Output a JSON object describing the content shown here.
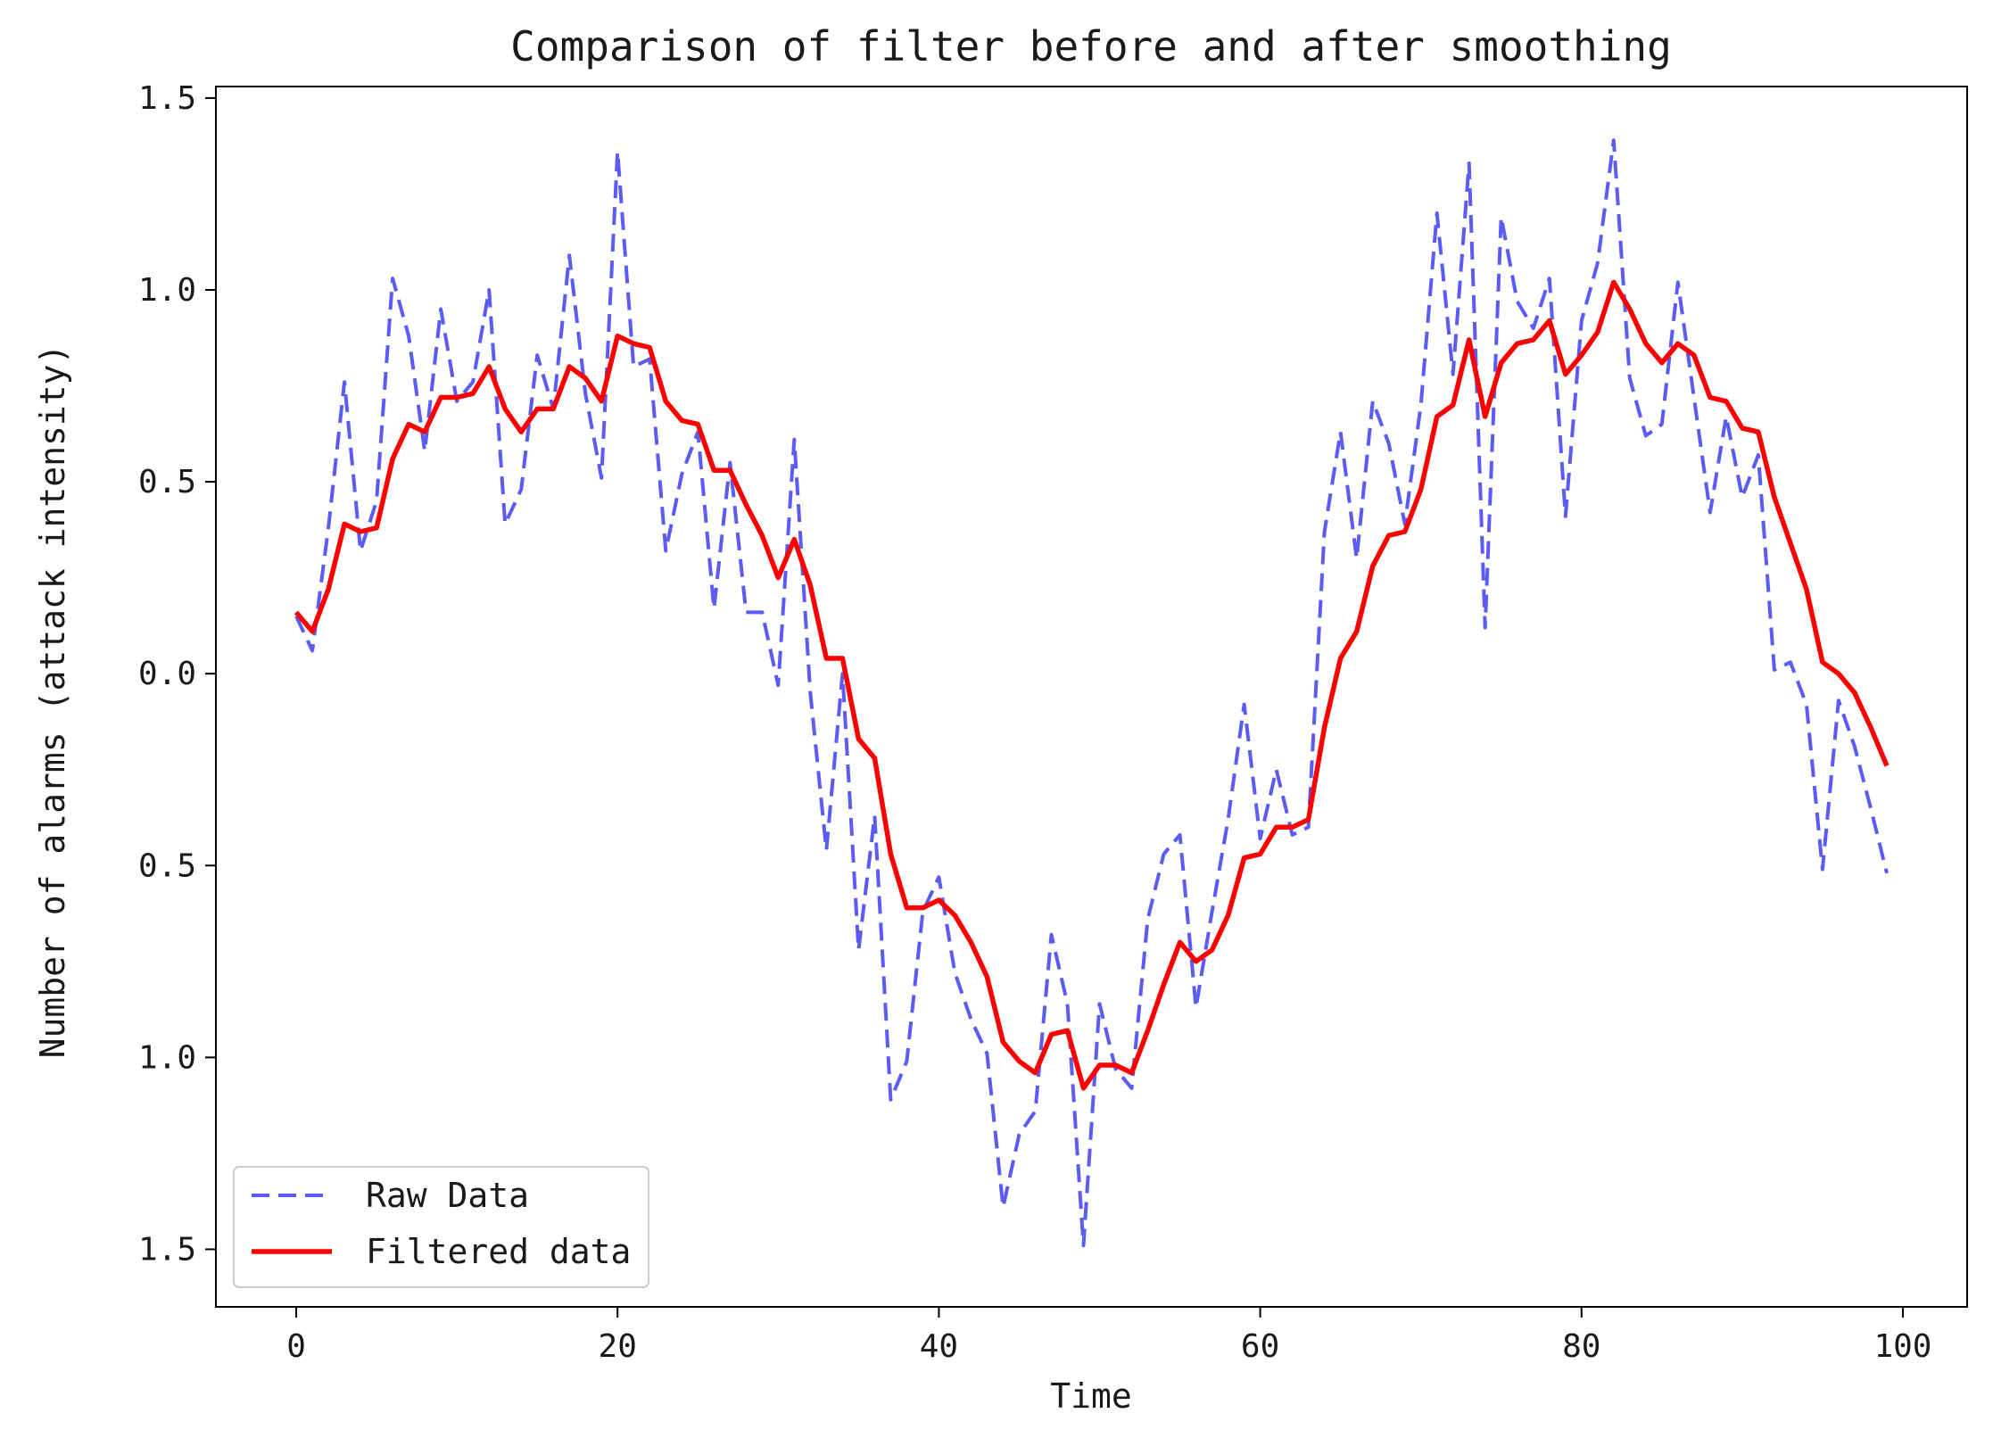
{
  "chart_data": {
    "type": "line",
    "title": "Comparison of filter before and after smoothing",
    "xlabel": "Time",
    "ylabel": "Number of alarms (attack intensity)",
    "xlim": [
      -5,
      104
    ],
    "ylim": [
      -1.65,
      1.53
    ],
    "x_ticks": [
      0,
      20,
      40,
      60,
      80,
      100
    ],
    "y_ticks": [
      1.5,
      1.0,
      0.5,
      0.0,
      -0.5,
      -1.0,
      -1.5
    ],
    "y_tick_labels": [
      "1.5",
      "1.0",
      "0.5",
      "0.0",
      "0.5",
      "1.0",
      "1.5"
    ],
    "grid": false,
    "legend_position": "lower-left",
    "x": [
      0,
      1,
      2,
      3,
      4,
      5,
      6,
      7,
      8,
      9,
      10,
      11,
      12,
      13,
      14,
      15,
      16,
      17,
      18,
      19,
      20,
      21,
      22,
      23,
      24,
      25,
      26,
      27,
      28,
      29,
      30,
      31,
      32,
      33,
      34,
      35,
      36,
      37,
      38,
      39,
      40,
      41,
      42,
      43,
      44,
      45,
      46,
      47,
      48,
      49,
      50,
      51,
      52,
      53,
      54,
      55,
      56,
      57,
      58,
      59,
      60,
      61,
      62,
      63,
      64,
      65,
      66,
      67,
      68,
      69,
      70,
      71,
      72,
      73,
      74,
      75,
      76,
      77,
      78,
      79,
      80,
      81,
      82,
      83,
      84,
      85,
      86,
      87,
      88,
      89,
      90,
      91,
      92,
      93,
      94,
      95,
      96,
      97,
      98,
      99
    ],
    "series": [
      {
        "name": "Raw Data",
        "color": "#5b5bf5",
        "style": "dashed",
        "values": [
          0.15,
          0.06,
          0.38,
          0.76,
          0.32,
          0.45,
          1.03,
          0.88,
          0.58,
          0.95,
          0.71,
          0.76,
          1.0,
          0.39,
          0.48,
          0.83,
          0.69,
          1.09,
          0.73,
          0.51,
          1.36,
          0.8,
          0.82,
          0.32,
          0.52,
          0.63,
          0.17,
          0.55,
          0.16,
          0.16,
          -0.03,
          0.61,
          -0.05,
          -0.46,
          0.0,
          -0.72,
          -0.37,
          -1.11,
          -1.01,
          -0.62,
          -0.53,
          -0.78,
          -0.9,
          -0.99,
          -1.39,
          -1.2,
          -1.14,
          -0.68,
          -0.86,
          -1.49,
          -0.86,
          -1.03,
          -1.08,
          -0.64,
          -0.47,
          -0.42,
          -0.87,
          -0.62,
          -0.38,
          -0.08,
          -0.43,
          -0.25,
          -0.42,
          -0.4,
          0.37,
          0.63,
          0.3,
          0.71,
          0.6,
          0.39,
          0.7,
          1.2,
          0.78,
          1.33,
          0.12,
          1.19,
          0.97,
          0.9,
          1.03,
          0.41,
          0.92,
          1.07,
          1.39,
          0.77,
          0.62,
          0.65,
          1.02,
          0.72,
          0.42,
          0.67,
          0.46,
          0.57,
          0.01,
          0.03,
          -0.08,
          -0.51,
          -0.07,
          -0.19,
          -0.35,
          -0.52
        ]
      },
      {
        "name": "Filtered data",
        "color": "#ff0000",
        "style": "solid",
        "values": [
          0.16,
          0.11,
          0.22,
          0.39,
          0.37,
          0.38,
          0.56,
          0.65,
          0.63,
          0.72,
          0.72,
          0.73,
          0.8,
          0.69,
          0.63,
          0.69,
          0.69,
          0.8,
          0.77,
          0.71,
          0.88,
          0.86,
          0.85,
          0.71,
          0.66,
          0.65,
          0.53,
          0.53,
          0.44,
          0.36,
          0.25,
          0.35,
          0.23,
          0.04,
          0.04,
          -0.17,
          -0.22,
          -0.47,
          -0.61,
          -0.61,
          -0.59,
          -0.63,
          -0.7,
          -0.79,
          -0.96,
          -1.01,
          -1.04,
          -0.94,
          -0.93,
          -1.08,
          -1.02,
          -1.02,
          -1.04,
          -0.93,
          -0.81,
          -0.7,
          -0.75,
          -0.72,
          -0.63,
          -0.48,
          -0.47,
          -0.4,
          -0.4,
          -0.38,
          -0.14,
          0.04,
          0.11,
          0.28,
          0.36,
          0.37,
          0.48,
          0.67,
          0.7,
          0.87,
          0.67,
          0.81,
          0.86,
          0.87,
          0.92,
          0.78,
          0.83,
          0.89,
          1.02,
          0.95,
          0.86,
          0.81,
          0.86,
          0.83,
          0.72,
          0.71,
          0.64,
          0.63,
          0.46,
          0.34,
          0.22,
          0.03,
          0.0,
          -0.05,
          -0.14,
          -0.24
        ]
      }
    ]
  }
}
